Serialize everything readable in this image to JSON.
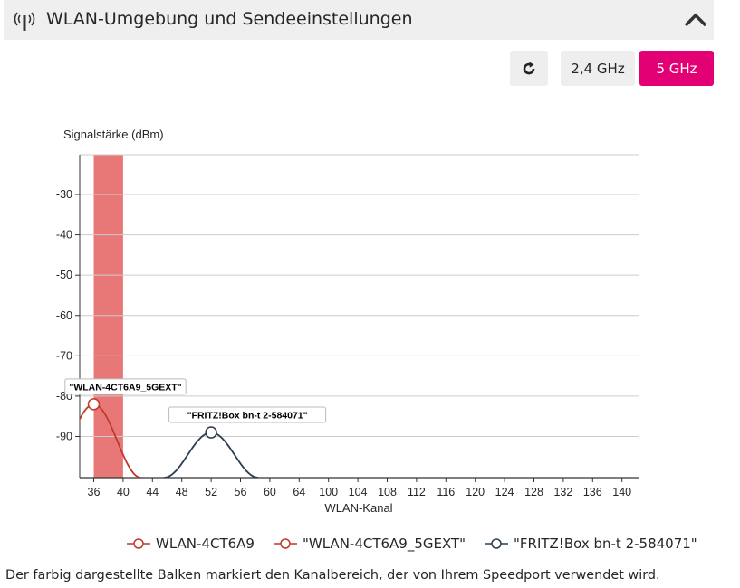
{
  "header": {
    "title": "WLAN-Umgebung und Sendeeinstellungen",
    "icon": "wifi-antenna-icon",
    "collapse_icon": "chevron-up-icon"
  },
  "controls": {
    "refresh_icon": "refresh-icon",
    "band_24": "2,4 GHz",
    "band_5": "5 GHz",
    "active_band": "5 GHz",
    "accent_color": "#e20074"
  },
  "chart_data": {
    "type": "line",
    "ylabel": "Signalstärke (dBm)",
    "xlabel": "WLAN-Kanal",
    "y_ticks": [
      "-30",
      "-40",
      "-50",
      "-60",
      "-70",
      "-80",
      "-90"
    ],
    "ylim": [
      -100,
      -20
    ],
    "x_ticks": [
      "36",
      "40",
      "44",
      "48",
      "52",
      "56",
      "60",
      "64",
      "100",
      "104",
      "108",
      "112",
      "116",
      "120",
      "124",
      "128",
      "132",
      "136",
      "140"
    ],
    "grid": true,
    "highlight_band": {
      "from": "36",
      "to": "40",
      "color": "#e87878"
    },
    "series": [
      {
        "name": "WLAN-4CT6A9",
        "color": "#c0392b",
        "points": []
      },
      {
        "name": "\"WLAN-4CT6A9_5GEXT\"",
        "color": "#c0392b",
        "center": "36",
        "peak": -82,
        "label": "\"WLAN-4CT6A9_5GEXT\""
      },
      {
        "name": "\"FRITZ!Box bn-t 2-584071\"",
        "color": "#2c3e50",
        "center": "52",
        "peak": -89,
        "label": "\"FRITZ!Box bn-t 2-584071\""
      }
    ]
  },
  "legend": {
    "items": [
      "WLAN-4CT6A9",
      "\"WLAN-4CT6A9_5GEXT\"",
      "\"FRITZ!Box bn-t 2-584071\""
    ]
  },
  "footnote": "Der farbig dargestellte Balken markiert den Kanalbereich, der von Ihrem Speedport verwendet wird."
}
